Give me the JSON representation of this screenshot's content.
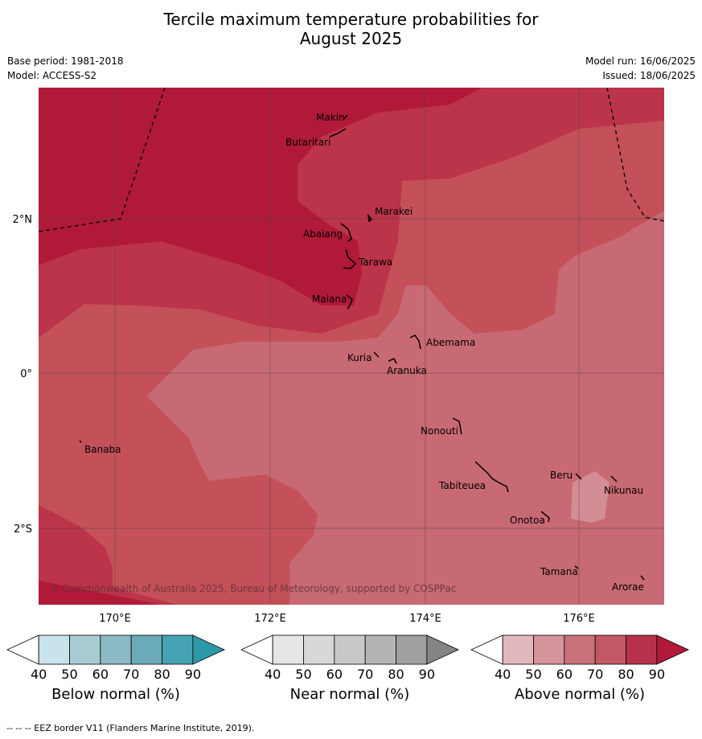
{
  "title": {
    "line1": "Tercile maximum temperature probabilities for",
    "line2": "August 2025"
  },
  "meta": {
    "base_period": "Base period: 1981-2018",
    "model": "Model: ACCESS-S2",
    "model_run": "Model run: 16/06/2025",
    "issued": "Issued: 18/06/2025"
  },
  "map": {
    "lon_ticks": [
      "170°E",
      "172°E",
      "174°E",
      "176°E"
    ],
    "lat_ticks": [
      "2°N",
      "0°",
      "2°S"
    ],
    "places": [
      {
        "name": "Makin"
      },
      {
        "name": "Butaritari"
      },
      {
        "name": "Marakei"
      },
      {
        "name": "Abaiang"
      },
      {
        "name": "Tarawa"
      },
      {
        "name": "Maiana"
      },
      {
        "name": "Abemama"
      },
      {
        "name": "Kuria"
      },
      {
        "name": "Aranuka"
      },
      {
        "name": "Nonouti"
      },
      {
        "name": "Banaba"
      },
      {
        "name": "Tabiteuea"
      },
      {
        "name": "Beru"
      },
      {
        "name": "Nikunau"
      },
      {
        "name": "Onotoa"
      },
      {
        "name": "Tamana"
      },
      {
        "name": "Arorae"
      }
    ],
    "copyright": "© Commonwealth of Australia 2025, Bureau of Meteorology, supported by COSPPac",
    "colors": {
      "above_90": "#b01a38",
      "above_80": "#bc3449",
      "above_70": "#c45059",
      "above_60": "#c86a73",
      "above_50": "#d38d95"
    }
  },
  "colorbars": [
    {
      "label": "Below normal (%)",
      "ticks": [
        "40",
        "50",
        "60",
        "70",
        "80",
        "90"
      ],
      "colors": [
        "#ffffff",
        "#c9e3ea",
        "#a8cbd3",
        "#8bb9c6",
        "#6aaab9",
        "#46a3b3",
        "#2d98a8"
      ]
    },
    {
      "label": "Near normal (%)",
      "ticks": [
        "40",
        "50",
        "60",
        "70",
        "80",
        "90"
      ],
      "colors": [
        "#ffffff",
        "#e6e6e6",
        "#d8d8d8",
        "#c8c8c8",
        "#b4b4b4",
        "#a0a0a0",
        "#858585"
      ]
    },
    {
      "label": "Above normal (%)",
      "ticks": [
        "40",
        "50",
        "60",
        "70",
        "80",
        "90"
      ],
      "colors": [
        "#ffffff",
        "#e2b8bf",
        "#d5939c",
        "#c87179",
        "#c25864",
        "#b8314a",
        "#b01a38"
      ]
    }
  ],
  "footer": "-- -- -- EEZ border V11 (Flanders Marine Institute, 2019)."
}
